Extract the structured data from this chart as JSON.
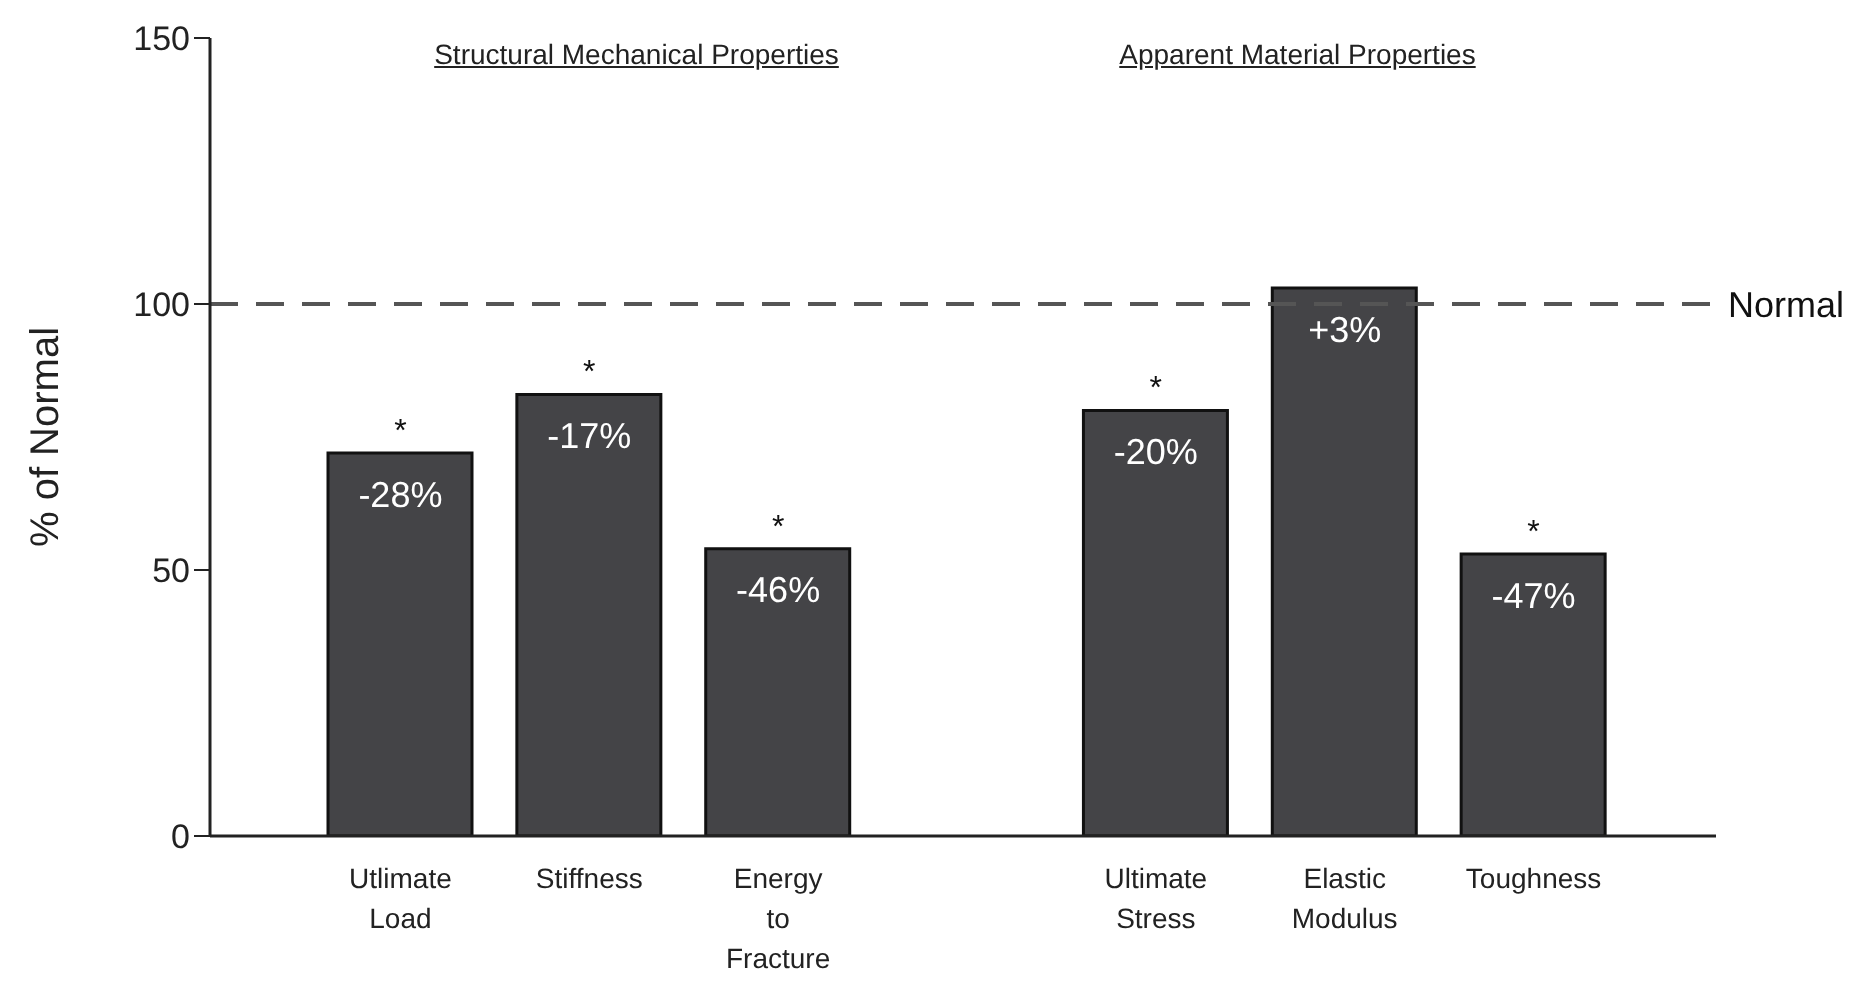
{
  "chart_data": {
    "type": "bar",
    "ylabel": "% of Normal",
    "categories": [
      "Utlimate Load",
      "Stiffness",
      "Energy to Fracture",
      null,
      "Ultimate Stress",
      "Elastic Modulus",
      "Toughness"
    ],
    "values": [
      72,
      83,
      54,
      null,
      80,
      103,
      53
    ],
    "color": "#444447",
    "ylim": [
      0,
      150
    ],
    "yticks": [
      0,
      50,
      100,
      150
    ],
    "grid": false,
    "legend": false,
    "ref_lines": [
      {
        "axis": "y",
        "value": 100,
        "label": "Normal",
        "line_style": "dashed",
        "color": "#555555"
      }
    ],
    "annotations": [
      "Structural Mechanical Properties",
      "Apparent Material Properties",
      {
        "text": "*",
        "x": "Utlimate Load",
        "y": 72
      },
      {
        "text": "*",
        "x": "Stiffness",
        "y": 83
      },
      {
        "text": "*",
        "x": "Energy to Fracture",
        "y": 54
      },
      {
        "text": "*",
        "x": "Ultimate Stress",
        "y": 80
      },
      {
        "text": "*",
        "x": "Toughness",
        "y": 53
      },
      {
        "text": "-28%",
        "x": "Utlimate Load",
        "y": 72
      },
      {
        "text": "-17%",
        "x": "Stiffness",
        "y": 83
      },
      {
        "text": "-46%",
        "x": "Energy to Fracture",
        "y": 54
      },
      {
        "text": "-20%",
        "x": "Ultimate Stress",
        "y": 80
      },
      {
        "text": "+3%",
        "x": "Elastic Modulus",
        "y": 103
      },
      {
        "text": "-47%",
        "x": "Toughness",
        "y": 53
      }
    ]
  }
}
